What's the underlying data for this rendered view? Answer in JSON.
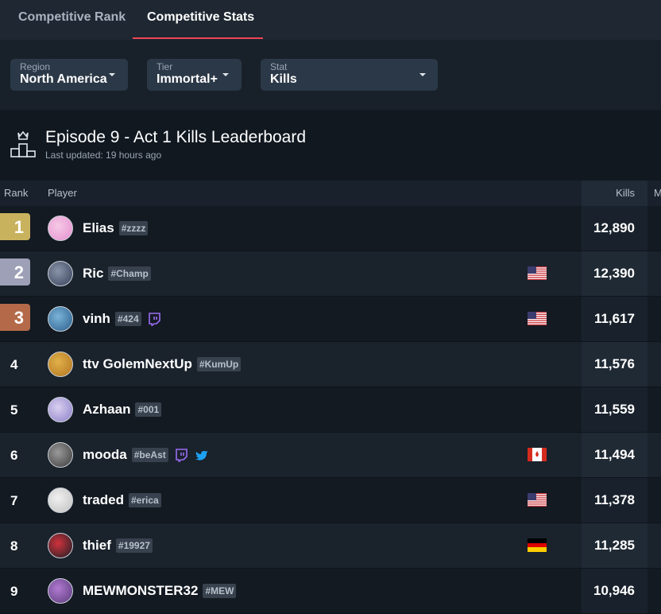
{
  "tabs": [
    "Competitive Rank",
    "Competitive Stats"
  ],
  "filters": [
    {
      "label": "Region",
      "value": "North America"
    },
    {
      "label": "Tier",
      "value": "Immortal+"
    },
    {
      "label": "Stat",
      "value": "Kills"
    }
  ],
  "leaderboard": {
    "title": "Episode 9 - Act 1 Kills Leaderboard",
    "updated": "Last updated: 19 hours ago",
    "columns": [
      "Rank",
      "Player",
      "Kills",
      "M"
    ],
    "rows": [
      {
        "rank": 1,
        "name": "Elias",
        "tag": "#zzzz",
        "kills": "12,890"
      },
      {
        "rank": 2,
        "name": "Ric",
        "tag": "#Champ",
        "kills": "12,390"
      },
      {
        "rank": 3,
        "name": "vinh",
        "tag": "#424",
        "kills": "11,617"
      },
      {
        "rank": 4,
        "name": "ttv GolemNextUp",
        "tag": "#KumUp",
        "kills": "11,576"
      },
      {
        "rank": 5,
        "name": "Azhaan",
        "tag": "#001",
        "kills": "11,559"
      },
      {
        "rank": 6,
        "name": "mooda",
        "tag": "#beAst",
        "kills": "11,494"
      },
      {
        "rank": 7,
        "name": "traded",
        "tag": "#erica",
        "kills": "11,378"
      },
      {
        "rank": 8,
        "name": "thief",
        "tag": "#19927",
        "kills": "11,285"
      },
      {
        "rank": 9,
        "name": "MEWMONSTER32",
        "tag": "#MEW",
        "kills": "10,946"
      }
    ]
  }
}
